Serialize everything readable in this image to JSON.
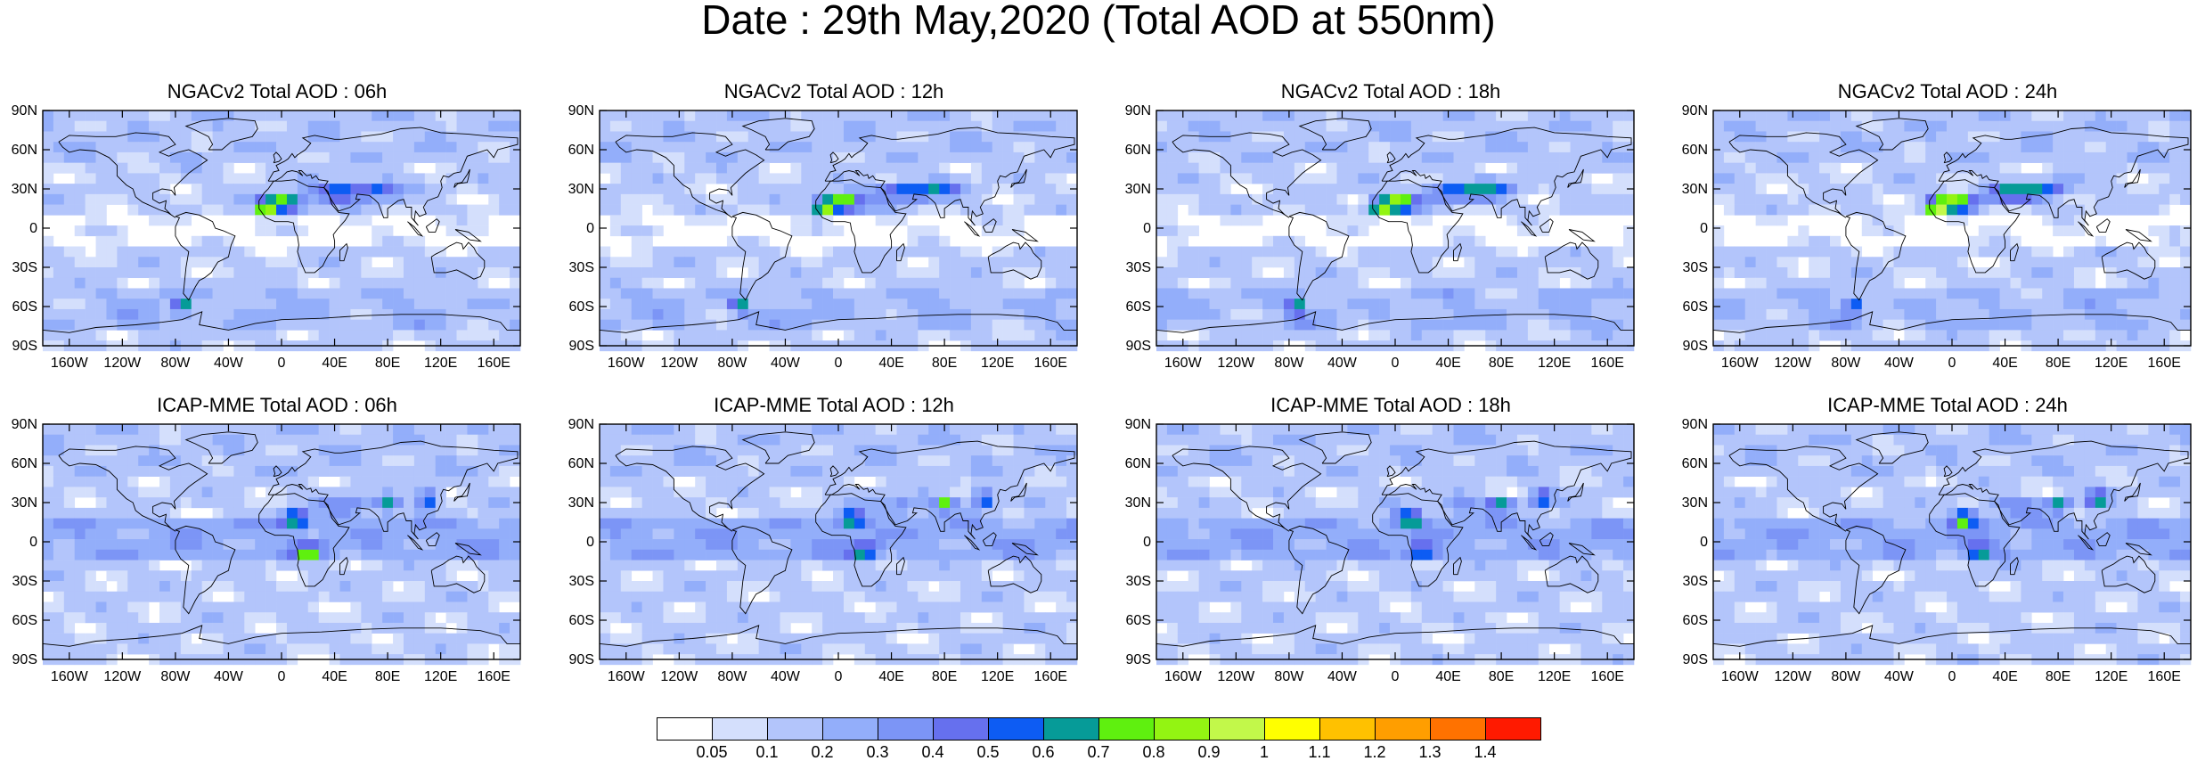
{
  "title": "Date : 29th May,2020 (Total AOD at 550nm)",
  "panels": [
    {
      "title": "NGACv2 Total AOD : 06h",
      "model": "ngac",
      "hour": 6
    },
    {
      "title": "NGACv2 Total AOD : 12h",
      "model": "ngac",
      "hour": 12
    },
    {
      "title": "NGACv2 Total AOD : 18h",
      "model": "ngac",
      "hour": 18
    },
    {
      "title": "NGACv2 Total AOD : 24h",
      "model": "ngac",
      "hour": 24
    },
    {
      "title": "ICAP-MME Total AOD : 06h",
      "model": "icap",
      "hour": 6
    },
    {
      "title": "ICAP-MME Total AOD : 12h",
      "model": "icap",
      "hour": 12
    },
    {
      "title": "ICAP-MME Total AOD : 18h",
      "model": "icap",
      "hour": 18
    },
    {
      "title": "ICAP-MME Total AOD : 24h",
      "model": "icap",
      "hour": 24
    }
  ],
  "lat_ticks": [
    "90N",
    "60N",
    "30N",
    "0",
    "30S",
    "60S",
    "90S"
  ],
  "lon_ticks": [
    "160W",
    "120W",
    "80W",
    "40W",
    "0",
    "40E",
    "80E",
    "120E",
    "160E"
  ],
  "lon_tick_values": [
    -160,
    -120,
    -80,
    -40,
    0,
    40,
    80,
    120,
    160
  ],
  "lat_tick_values": [
    90,
    60,
    30,
    0,
    -30,
    -60,
    -90
  ],
  "colorbar": {
    "labels": [
      "0.05",
      "0.1",
      "0.2",
      "0.3",
      "0.4",
      "0.5",
      "0.6",
      "0.7",
      "0.8",
      "0.9",
      "1",
      "1.1",
      "1.2",
      "1.3",
      "1.4"
    ],
    "colors": [
      "#ffffff",
      "#d4dffc",
      "#b3c5fb",
      "#93aefa",
      "#7c95f6",
      "#6670ee",
      "#0d5cf3",
      "#069b98",
      "#5ff00f",
      "#93f412",
      "#c2f84a",
      "#ffff00",
      "#ffc100",
      "#ff9e00",
      "#ff7200",
      "#ff1a00"
    ]
  }
}
